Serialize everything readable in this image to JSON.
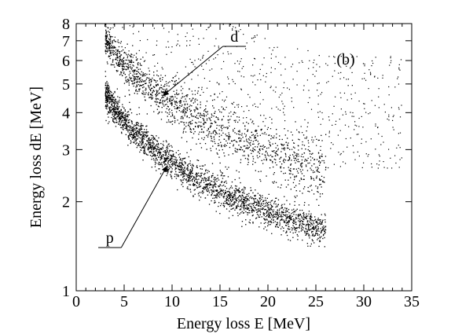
{
  "chart_data": {
    "type": "scatter",
    "panel_label": "(b)",
    "xlabel": "Energy loss E  [MeV]",
    "ylabel": "Energy loss dE  [MeV]",
    "xlim": [
      0,
      35
    ],
    "ylim": [
      1,
      8
    ],
    "yscale": "log",
    "grid": false,
    "x_ticks": [
      0,
      5,
      10,
      15,
      20,
      25,
      30,
      35
    ],
    "y_ticks": [
      1,
      2,
      3,
      4,
      5,
      6,
      7,
      8
    ],
    "x_tick_labels": [
      "0",
      "5",
      "10",
      "15",
      "20",
      "25",
      "30",
      "35"
    ],
    "y_tick_labels": [
      "1",
      "2",
      "3",
      "4",
      "5",
      "6",
      "7",
      "8"
    ],
    "series": [
      {
        "name": "p",
        "x": [
          3.0,
          3.5,
          4,
          5,
          6,
          7,
          8,
          9,
          10,
          12,
          14,
          16,
          18,
          20,
          22,
          24,
          26
        ],
        "y": [
          4.7,
          4.35,
          4.1,
          3.75,
          3.45,
          3.2,
          3.0,
          2.85,
          2.7,
          2.45,
          2.25,
          2.1,
          1.97,
          1.85,
          1.75,
          1.67,
          1.6
        ]
      },
      {
        "name": "d",
        "x": [
          3.0,
          3.5,
          4,
          5,
          6,
          7,
          8,
          9,
          10,
          12,
          14,
          16,
          18,
          20,
          22,
          24,
          26
        ],
        "y": [
          7.1,
          6.65,
          6.3,
          5.8,
          5.4,
          5.05,
          4.75,
          4.5,
          4.3,
          3.9,
          3.6,
          3.35,
          3.15,
          2.95,
          2.8,
          2.65,
          2.55
        ]
      }
    ],
    "annotations": [
      {
        "text": "d",
        "target_x": 9.0,
        "target_y": 4.55,
        "label_x": 16.5,
        "label_y": 6.7
      },
      {
        "text": "p",
        "target_x": 9.5,
        "target_y": 2.65,
        "label_x": 3.5,
        "label_y": 1.4
      }
    ]
  }
}
